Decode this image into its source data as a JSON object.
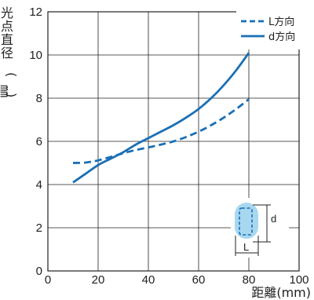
{
  "chart_data": {
    "type": "line",
    "xlabel": "距離(mm)",
    "ylabel": "光点直径(㎜)",
    "xlim": [
      0,
      100
    ],
    "ylim": [
      0,
      12
    ],
    "xticks": [
      "0",
      "20",
      "40",
      "60",
      "80",
      "100"
    ],
    "yticks": [
      "0",
      "2",
      "4",
      "6",
      "8",
      "10",
      "12"
    ],
    "grid": true,
    "legend_position": "top-right",
    "series": [
      {
        "name": "L方向",
        "style": "dashed",
        "color": "#1a6fb5",
        "x": [
          10,
          15,
          20,
          25,
          30,
          35,
          40,
          45,
          50,
          55,
          60,
          65,
          70,
          75,
          80
        ],
        "y": [
          5.0,
          5.02,
          5.12,
          5.28,
          5.45,
          5.6,
          5.72,
          5.85,
          6.0,
          6.2,
          6.45,
          6.75,
          7.1,
          7.5,
          7.95
        ]
      },
      {
        "name": "d方向",
        "style": "solid",
        "color": "#1a6fb5",
        "x": [
          10,
          15,
          20,
          25,
          30,
          35,
          40,
          45,
          50,
          55,
          60,
          65,
          70,
          75,
          80
        ],
        "y": [
          4.1,
          4.5,
          4.9,
          5.2,
          5.5,
          5.85,
          6.15,
          6.45,
          6.75,
          7.1,
          7.5,
          8.0,
          8.6,
          9.3,
          10.1
        ]
      }
    ],
    "inset": {
      "labels": [
        "d",
        "L"
      ],
      "highlight_color": "#a8d8f0"
    }
  }
}
